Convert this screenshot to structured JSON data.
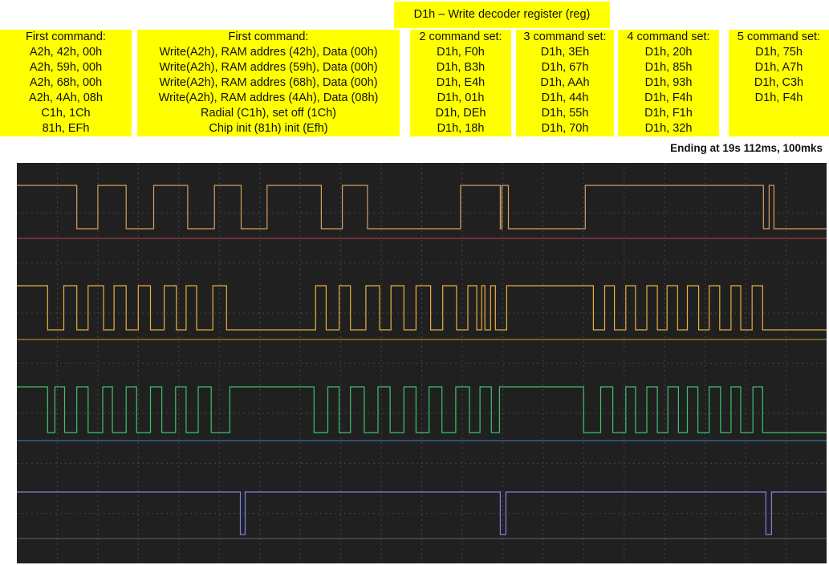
{
  "header": {
    "title": "D1h – Write decoder register (reg)"
  },
  "columns": [
    {
      "lines": [
        "First command:",
        "A2h, 42h, 00h",
        "A2h, 59h, 00h",
        "A2h, 68h, 00h",
        "A2h, 4Ah, 08h",
        "C1h, 1Ch",
        "81h, EFh"
      ]
    },
    {
      "lines": [
        "First command:",
        "Write(A2h), RAM addres (42h), Data (00h)",
        "Write(A2h), RAM addres (59h), Data (00h)",
        "Write(A2h), RAM addres (68h), Data (00h)",
        "Write(A2h), RAM addres (4Ah), Data (08h)",
        "Radial (C1h), set off (1Ch)",
        "Chip init (81h) init (Efh)"
      ]
    },
    {
      "lines": [
        "2 command set:",
        "D1h, F0h",
        "D1h, B3h",
        "D1h, E4h",
        "D1h, 01h",
        "D1h, DEh",
        "D1h, 18h"
      ]
    },
    {
      "lines": [
        "3 command set:",
        "D1h, 3Eh",
        "D1h, 67h",
        "D1h, AAh",
        "D1h, 44h",
        "D1h, 55h",
        "D1h, 70h"
      ]
    },
    {
      "lines": [
        "4 command set:",
        "D1h, 20h",
        "D1h, 85h",
        "D1h, 93h",
        "D1h, F4h",
        "D1h, F1h",
        "D1h, 32h"
      ]
    },
    {
      "lines": [
        "5 command set:",
        "D1h, 75h",
        "D1h, A7h",
        "D1h, C3h",
        "D1h, F4h"
      ]
    }
  ],
  "ending_note": "Ending at 19s 112ms, 100mks",
  "colors": {
    "scope_background": "#202020",
    "grid": "#454545",
    "channel_1": "#d8a060",
    "channel_2": "#e8b040",
    "channel_3": "#40c070",
    "channel_4": "#8080e0"
  },
  "chart_data": {
    "type": "line",
    "title": "",
    "xlabel": "",
    "ylabel": "",
    "x_range": [
      0,
      100
    ],
    "grid": true,
    "legend": "none",
    "series": [
      {
        "color": "#d8a060",
        "initial": 1,
        "transitions": [
          7.4,
          10,
          13.5,
          16.9,
          21.1,
          24.4,
          27.7,
          30.9,
          37.6,
          40.2,
          43.3,
          54.8,
          59.7,
          59.9,
          60.7,
          70.2,
          92.2,
          92.9,
          93.5
        ]
      },
      {
        "color": "#e8b040",
        "initial": 1,
        "transitions": [
          3.8,
          5.8,
          7.4,
          8.8,
          10.7,
          12,
          13.5,
          15,
          16.5,
          18.2,
          19.7,
          20.9,
          22.2,
          24.2,
          25.9,
          36.9,
          38.2,
          39.8,
          41.2,
          43.1,
          44.8,
          46.2,
          47.8,
          49.3,
          51.1,
          52.6,
          54.3,
          55.7,
          56.8,
          57.4,
          57.8,
          58.5,
          59.1,
          60.5,
          71.2,
          72.6,
          73.8,
          75.2,
          76.4,
          77.8,
          79.1,
          80.3,
          81.6,
          82.8,
          84.2,
          85.5,
          86.8,
          88.2,
          89.4,
          90.8,
          92.1
        ]
      },
      {
        "color": "#40c070",
        "initial": 1,
        "transitions": [
          3.8,
          4.7,
          5.9,
          7.4,
          8.8,
          10.6,
          11.8,
          13.5,
          14.8,
          16.5,
          17.9,
          19.6,
          20.9,
          22.4,
          24,
          26.3,
          36.7,
          38.4,
          39.8,
          41.2,
          42.9,
          44.6,
          46.1,
          47.8,
          49.3,
          50.9,
          52.5,
          54.2,
          55.9,
          57.2,
          58.6,
          59.6,
          70,
          72.1,
          73.6,
          75.2,
          76.4,
          77.8,
          79.1,
          80.4,
          81.7,
          82.8,
          84.1,
          85.5,
          86.9,
          88.2,
          89.4,
          90.9,
          92.1
        ]
      },
      {
        "color": "#8080e0",
        "initial": 1,
        "transitions": [
          27.6,
          28.2,
          59.7,
          60.4,
          92.5,
          93.2
        ]
      }
    ]
  }
}
